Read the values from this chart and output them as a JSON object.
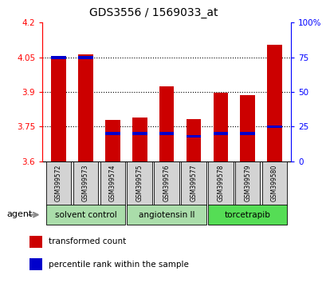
{
  "title": "GDS3556 / 1569033_at",
  "samples": [
    "GSM399572",
    "GSM399573",
    "GSM399574",
    "GSM399575",
    "GSM399576",
    "GSM399577",
    "GSM399578",
    "GSM399579",
    "GSM399580"
  ],
  "transformed_counts": [
    4.05,
    4.062,
    3.78,
    3.79,
    3.925,
    3.783,
    3.895,
    3.888,
    4.105
  ],
  "percentile_ranks_pct": [
    75,
    75,
    20,
    20,
    20,
    18,
    20,
    20,
    25
  ],
  "bar_bottom": 3.6,
  "ylim": [
    3.6,
    4.2
  ],
  "yticks_left": [
    3.6,
    3.75,
    3.9,
    4.05,
    4.2
  ],
  "yticks_right": [
    0,
    25,
    50,
    75,
    100
  ],
  "bar_color": "#cc0000",
  "pct_color": "#0000cc",
  "group_info": [
    {
      "label": "solvent control",
      "start": 0,
      "end": 2,
      "color": "#aaddaa"
    },
    {
      "label": "angiotensin II",
      "start": 3,
      "end": 5,
      "color": "#aaddaa"
    },
    {
      "label": "torcetrapib",
      "start": 6,
      "end": 8,
      "color": "#55dd55"
    }
  ],
  "agent_label": "agent",
  "legend_bar_label": "transformed count",
  "legend_pct_label": "percentile rank within the sample",
  "bar_width": 0.55
}
